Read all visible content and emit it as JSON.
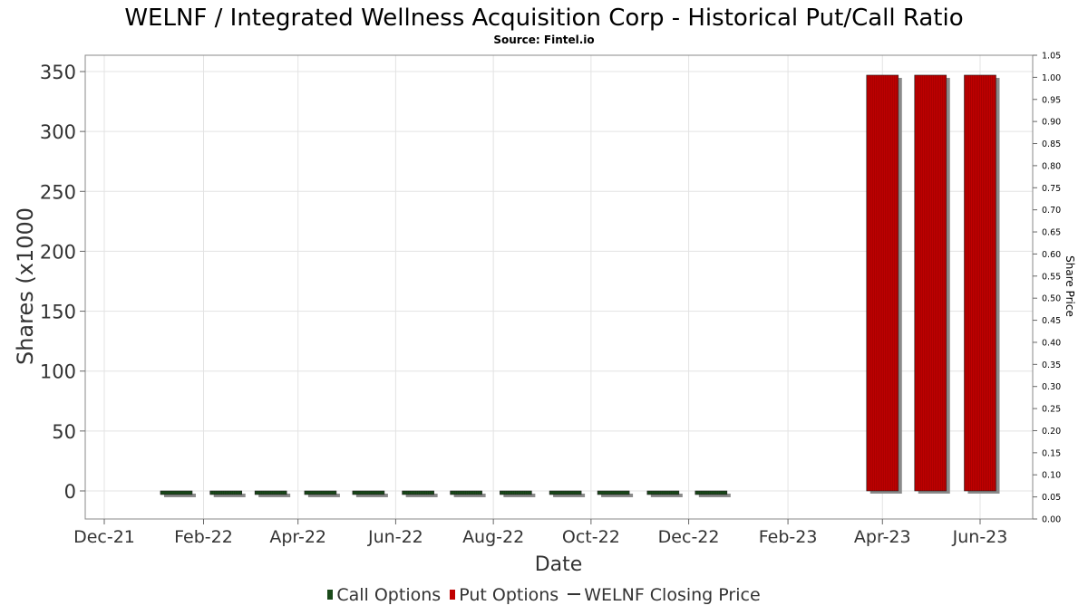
{
  "chart_data": {
    "type": "bar",
    "title": "WELNF / Integrated Wellness Acquisition Corp - Historical Put/Call Ratio",
    "subtitle": "Source: Fintel.io",
    "xlabel": "Date",
    "ylabel": "Shares (x1000",
    "y2label": "Share Price",
    "ylim": [
      -25,
      360
    ],
    "y2lim": [
      0.0,
      1.05
    ],
    "yticks": [
      "0",
      "50",
      "100",
      "150",
      "200",
      "250",
      "300",
      "350"
    ],
    "y2ticks": [
      "0.00",
      "0.05",
      "0.10",
      "0.15",
      "0.20",
      "0.25",
      "0.30",
      "0.35",
      "0.40",
      "0.45",
      "0.50",
      "0.55",
      "0.60",
      "0.65",
      "0.70",
      "0.75",
      "0.80",
      "0.85",
      "0.90",
      "0.95",
      "1.00",
      "1.05"
    ],
    "xticks": [
      "Dec-21",
      "Feb-22",
      "Apr-22",
      "Jun-22",
      "Aug-22",
      "Oct-22",
      "Dec-22",
      "Feb-23",
      "Apr-23",
      "Jun-23"
    ],
    "grid": true,
    "legend_position": "bottom",
    "legend": [
      "Call Options",
      "Put Options",
      "WELNF Closing Price"
    ],
    "colors": {
      "call": "#1a4a1a",
      "put": "#c00000",
      "price": "#333333"
    },
    "series": [
      {
        "name": "Call Options",
        "dates": [
          "2022-01-15",
          "2022-02-15",
          "2022-03-15",
          "2022-04-15",
          "2022-05-15",
          "2022-06-15",
          "2022-07-15",
          "2022-08-15",
          "2022-09-15",
          "2022-10-15",
          "2022-11-15",
          "2022-12-15"
        ],
        "values": [
          -3,
          -3,
          -3,
          -3,
          -3,
          -3,
          -3,
          -3,
          -3,
          -3,
          -3,
          -3
        ]
      },
      {
        "name": "Put Options",
        "dates": [
          "2023-04-01",
          "2023-05-01",
          "2023-06-01"
        ],
        "values": [
          347,
          347,
          347
        ]
      },
      {
        "name": "WELNF Closing Price",
        "dates": [],
        "values": []
      }
    ]
  }
}
